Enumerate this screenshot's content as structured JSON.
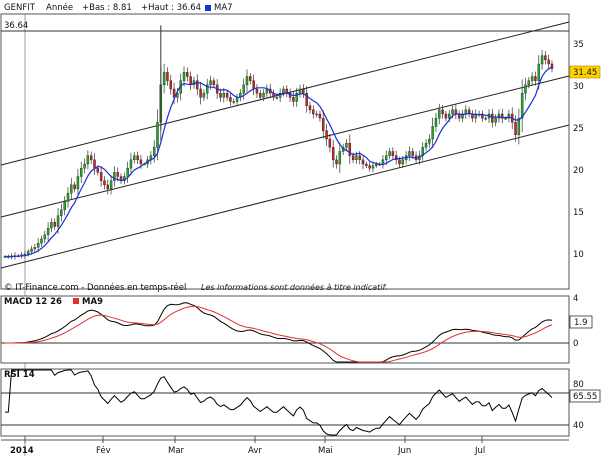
{
  "chart_data": {
    "type": "candlestick",
    "header": {
      "symbol": "GENFIT",
      "period": "Année",
      "low_label": "+Bas : 8.81",
      "high_label": "+Haut : 36.64",
      "ma_label": "MA7"
    },
    "colors": {
      "up_candle": "#22aa22",
      "down_candle": "#cc2222",
      "ma_line": "#1a2fd6",
      "macd_line": "#000000",
      "signal_line": "#e03030",
      "last_price_bg": "#ffd200"
    },
    "price_axis": {
      "ylim": [
        5,
        38
      ],
      "ticks": [
        "10",
        "15",
        "20",
        "25",
        "30",
        "35"
      ]
    },
    "last_price": "31.45",
    "high_marker": "36.64",
    "x_ticks": [
      "2014",
      "Fév",
      "Mar",
      "Avr",
      "Mai",
      "Jun",
      "Jul"
    ],
    "footer": {
      "source": "© IT-Finance.com - Données en temps-réel",
      "disclaimer": "Les informations sont données à titre indicatif."
    },
    "closes": [
      8.9,
      8.9,
      8.95,
      9.0,
      9.0,
      9.1,
      9.2,
      9.5,
      9.8,
      10.0,
      10.5,
      11.0,
      11.5,
      12.3,
      13.0,
      12.5,
      13.8,
      14.5,
      15.5,
      16.5,
      17.5,
      17.0,
      18.5,
      19.5,
      20.0,
      21.0,
      20.5,
      19.5,
      19.0,
      18.0,
      17.5,
      17.0,
      18.0,
      19.0,
      18.5,
      18.0,
      18.5,
      19.5,
      20.5,
      21.0,
      20.5,
      20.0,
      20.0,
      20.5,
      21.0,
      22.0,
      25.0,
      29.5,
      31.0,
      30.0,
      29.0,
      28.0,
      28.5,
      30.0,
      31.0,
      30.5,
      29.5,
      30.0,
      29.0,
      28.0,
      28.5,
      29.5,
      30.0,
      29.5,
      28.5,
      28.0,
      28.5,
      28.0,
      27.5,
      27.5,
      28.0,
      28.5,
      29.5,
      30.5,
      30.0,
      29.0,
      28.5,
      28.0,
      28.5,
      29.0,
      28.5,
      28.0,
      28.0,
      28.5,
      29.0,
      28.5,
      28.0,
      27.5,
      28.5,
      29.0,
      28.5,
      27.0,
      26.5,
      26.0,
      26.0,
      25.5,
      24.0,
      23.0,
      22.0,
      20.5,
      20.0,
      21.5,
      22.0,
      22.5,
      21.0,
      20.5,
      21.0,
      20.5,
      20.0,
      19.8,
      19.5,
      19.8,
      20.0,
      20.0,
      20.5,
      21.0,
      21.5,
      21.0,
      20.5,
      20.0,
      20.5,
      21.0,
      21.5,
      21.0,
      20.5,
      21.0,
      22.0,
      22.5,
      23.0,
      24.5,
      25.5,
      26.5,
      26.0,
      25.5,
      26.0,
      26.5,
      26.0,
      25.5,
      26.0,
      26.5,
      26.0,
      25.5,
      26.0,
      26.0,
      25.5,
      25.5,
      26.0,
      25.0,
      25.5,
      26.0,
      25.5,
      25.5,
      26.0,
      25.0,
      23.5,
      25.5,
      28.5,
      29.5,
      30.0,
      30.5,
      30.0,
      32.0,
      33.0,
      32.5,
      32.0,
      31.45
    ],
    "price_stats": {
      "min": 8.81,
      "max": 36.64
    },
    "macd_axis": {
      "ylim": [
        -4,
        4
      ],
      "ticks": [
        "4",
        "0"
      ]
    },
    "macd_last": "1.9",
    "rsi_axis": {
      "ylim": [
        25,
        95
      ],
      "ticks": [
        "80",
        "40"
      ]
    },
    "rsi_last": "65.55",
    "labels": {
      "macd": "MACD 12 26",
      "macd_signal": "MA9",
      "rsi": "RSI 14"
    }
  }
}
